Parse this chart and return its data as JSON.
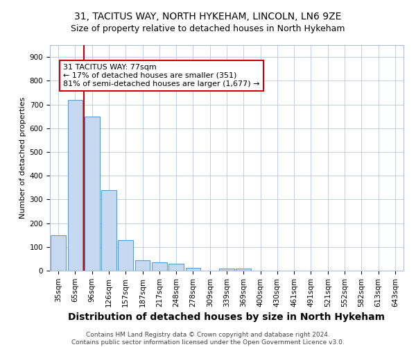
{
  "title1": "31, TACITUS WAY, NORTH HYKEHAM, LINCOLN, LN6 9ZE",
  "title2": "Size of property relative to detached houses in North Hykeham",
  "xlabel": "Distribution of detached houses by size in North Hykeham",
  "ylabel": "Number of detached properties",
  "categories": [
    "35sqm",
    "65sqm",
    "96sqm",
    "126sqm",
    "157sqm",
    "187sqm",
    "217sqm",
    "248sqm",
    "278sqm",
    "309sqm",
    "339sqm",
    "369sqm",
    "400sqm",
    "430sqm",
    "461sqm",
    "491sqm",
    "521sqm",
    "552sqm",
    "582sqm",
    "613sqm",
    "643sqm"
  ],
  "values": [
    150,
    720,
    650,
    340,
    130,
    43,
    35,
    30,
    12,
    0,
    8,
    8,
    0,
    0,
    0,
    0,
    0,
    0,
    0,
    0,
    0
  ],
  "bar_color": "#c6d9f0",
  "bar_edgecolor": "#5b9bd5",
  "red_line_x": 1.5,
  "annotation_text": "31 TACITUS WAY: 77sqm\n← 17% of detached houses are smaller (351)\n81% of semi-detached houses are larger (1,677) →",
  "annotation_box_edgecolor": "#cc0000",
  "annotation_box_facecolor": "#ffffff",
  "red_line_color": "#cc0000",
  "ylim": [
    0,
    950
  ],
  "yticks": [
    0,
    100,
    200,
    300,
    400,
    500,
    600,
    700,
    800,
    900
  ],
  "footnote": "Contains HM Land Registry data © Crown copyright and database right 2024.\nContains public sector information licensed under the Open Government Licence v3.0.",
  "title1_fontsize": 10,
  "title2_fontsize": 9,
  "xlabel_fontsize": 10,
  "ylabel_fontsize": 8,
  "tick_fontsize": 7.5,
  "annotation_fontsize": 8,
  "footnote_fontsize": 6.5
}
